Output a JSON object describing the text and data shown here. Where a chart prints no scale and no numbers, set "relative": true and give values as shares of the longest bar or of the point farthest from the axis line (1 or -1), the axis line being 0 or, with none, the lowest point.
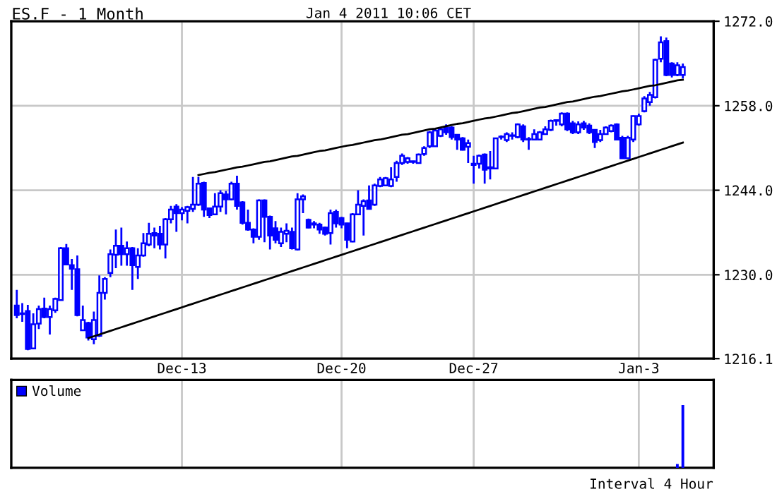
{
  "chart_data": [
    {
      "type": "candlestick",
      "title": "ES.F - 1 Month",
      "subtitle": "Jan 4 2011 10:06 CET",
      "categories": [
        null,
        null,
        null,
        null,
        null,
        null,
        null,
        null,
        null,
        null,
        null,
        null,
        null,
        null,
        null,
        null,
        null,
        null,
        null,
        null,
        null,
        null,
        null,
        null,
        null,
        null,
        null,
        null,
        null,
        null,
        "Dec-13",
        null,
        null,
        null,
        null,
        null,
        null,
        null,
        null,
        null,
        null,
        null,
        null,
        null,
        null,
        null,
        null,
        null,
        null,
        null,
        null,
        null,
        null,
        null,
        null,
        null,
        null,
        null,
        null,
        "Dec-20",
        null,
        null,
        null,
        null,
        null,
        null,
        null,
        null,
        null,
        null,
        null,
        null,
        null,
        null,
        null,
        null,
        null,
        null,
        null,
        null,
        null,
        null,
        null,
        "Dec-27",
        null,
        null,
        null,
        null,
        null,
        null,
        null,
        null,
        null,
        null,
        null,
        null,
        null,
        null,
        null,
        null,
        null,
        null,
        null,
        null,
        null,
        null,
        null,
        null,
        null,
        null,
        null,
        null,
        null,
        "Jan-3",
        null,
        null,
        null,
        null,
        null,
        null,
        null,
        null
      ],
      "ylim": [
        1216.1,
        1272.0
      ],
      "yticks": [
        {
          "value": 1216.1,
          "label": "1216.1"
        },
        {
          "value": 1230,
          "label": "1230.0"
        },
        {
          "value": 1244,
          "label": "1244.0"
        },
        {
          "value": 1258,
          "label": "1258.0"
        },
        {
          "value": 1272,
          "label": "1272.0"
        }
      ],
      "grid": true,
      "series": [
        {
          "type": "candlestick",
          "color": "#0000ff",
          "ohlc": [
            [
              1224.9,
              1227.5,
              1222.8,
              1223.3
            ],
            [
              1223.6,
              1225.3,
              1222.2,
              1223.5
            ],
            [
              1224.0,
              1225.0,
              1217.5,
              1217.7
            ],
            [
              1217.8,
              1223.6,
              1217.7,
              1221.8
            ],
            [
              1221.9,
              1224.9,
              1221.0,
              1224.3
            ],
            [
              1224.4,
              1226.2,
              1222.8,
              1223.0
            ],
            [
              1223.0,
              1224.9,
              1220.1,
              1224.3
            ],
            [
              1224.1,
              1226.2,
              1223.7,
              1226.0
            ],
            [
              1225.8,
              1234.6,
              1225.7,
              1234.4
            ],
            [
              1234.4,
              1235.1,
              1231.6,
              1231.7
            ],
            [
              1231.6,
              1232.6,
              1227.5,
              1231.0
            ],
            [
              1230.9,
              1233.2,
              1223.1,
              1223.3
            ],
            [
              1220.8,
              1224.9,
              1220.8,
              1222.5
            ],
            [
              1222.0,
              1222.2,
              1219.1,
              1219.6
            ],
            [
              1219.3,
              1223.9,
              1218.5,
              1222.5
            ],
            [
              1219.9,
              1229.9,
              1219.7,
              1227.0
            ],
            [
              1227.0,
              1229.6,
              1225.9,
              1229.3
            ],
            [
              1230.3,
              1234.2,
              1229.6,
              1233.4
            ],
            [
              1233.3,
              1237.5,
              1231.1,
              1234.8
            ],
            [
              1234.8,
              1237.8,
              1231.5,
              1233.4
            ],
            [
              1233.4,
              1235.5,
              1231.5,
              1234.4
            ],
            [
              1234.4,
              1234.6,
              1227.5,
              1231.6
            ],
            [
              1231.3,
              1234.4,
              1229.3,
              1233.2
            ],
            [
              1233.2,
              1236.9,
              1233.0,
              1235.2
            ],
            [
              1235.0,
              1238.6,
              1234.7,
              1236.8
            ],
            [
              1236.9,
              1237.8,
              1234.4,
              1236.5
            ],
            [
              1236.8,
              1238.1,
              1234.2,
              1235.0
            ],
            [
              1235.0,
              1239.4,
              1232.7,
              1239.2
            ],
            [
              1239.2,
              1241.4,
              1238.5,
              1240.8
            ],
            [
              1241.3,
              1241.7,
              1237.1,
              1240.2
            ],
            [
              1240.2,
              1241.2,
              1239.0,
              1240.8
            ],
            [
              1240.6,
              1241.4,
              1238.5,
              1241.2
            ],
            [
              1240.9,
              1246.2,
              1240.4,
              1241.6
            ],
            [
              1241.6,
              1246.2,
              1241.4,
              1245.1
            ],
            [
              1245.2,
              1245.4,
              1239.6,
              1240.8
            ],
            [
              1241.0,
              1241.1,
              1239.4,
              1239.9
            ],
            [
              1240.0,
              1243.5,
              1239.9,
              1241.3
            ],
            [
              1241.3,
              1244.0,
              1240.4,
              1243.5
            ],
            [
              1243.3,
              1243.9,
              1240.0,
              1242.5
            ],
            [
              1242.5,
              1245.4,
              1242.3,
              1245.1
            ],
            [
              1245.1,
              1246.4,
              1240.8,
              1241.4
            ],
            [
              1242.0,
              1242.2,
              1238.3,
              1238.6
            ],
            [
              1238.6,
              1240.8,
              1237.3,
              1237.5
            ],
            [
              1237.5,
              1237.7,
              1235.2,
              1236.3
            ],
            [
              1236.3,
              1242.5,
              1235.8,
              1242.3
            ],
            [
              1242.3,
              1242.5,
              1235.4,
              1239.6
            ],
            [
              1239.6,
              1239.8,
              1234.2,
              1236.5
            ],
            [
              1237.7,
              1238.9,
              1235.2,
              1235.8
            ],
            [
              1235.2,
              1237.8,
              1234.6,
              1237.1
            ],
            [
              1236.8,
              1238.5,
              1235.4,
              1237.3
            ],
            [
              1237.1,
              1237.8,
              1234.2,
              1234.4
            ],
            [
              1234.2,
              1243.5,
              1234.0,
              1242.5
            ],
            [
              1242.5,
              1243.3,
              1240.2,
              1243.0
            ],
            [
              1239.1,
              1239.3,
              1237.7,
              1237.8
            ],
            [
              1238.5,
              1238.9,
              1237.7,
              1238.3
            ],
            [
              1238.3,
              1238.6,
              1236.8,
              1237.5
            ],
            [
              1237.8,
              1238.0,
              1236.5,
              1236.8
            ],
            [
              1236.9,
              1240.8,
              1235.0,
              1240.2
            ],
            [
              1240.4,
              1240.8,
              1237.8,
              1238.5
            ],
            [
              1239.4,
              1239.6,
              1237.7,
              1238.3
            ],
            [
              1238.5,
              1238.6,
              1234.4,
              1235.8
            ],
            [
              1235.5,
              1240.2,
              1235.4,
              1240.0
            ],
            [
              1240.0,
              1244.0,
              1240.0,
              1241.6
            ],
            [
              1241.4,
              1242.5,
              1236.5,
              1242.2
            ],
            [
              1242.3,
              1244.8,
              1240.8,
              1240.9
            ],
            [
              1241.6,
              1245.1,
              1241.4,
              1244.8
            ],
            [
              1244.7,
              1246.2,
              1244.5,
              1245.8
            ],
            [
              1244.8,
              1246.2,
              1244.7,
              1246.0
            ],
            [
              1244.7,
              1247.8,
              1244.5,
              1245.8
            ],
            [
              1246.2,
              1248.9,
              1245.4,
              1248.5
            ],
            [
              1248.5,
              1250.1,
              1248.2,
              1249.7
            ],
            [
              1248.7,
              1249.5,
              1248.4,
              1249.3
            ],
            [
              1248.8,
              1248.9,
              1248.4,
              1248.7
            ],
            [
              1248.5,
              1250.1,
              1248.4,
              1249.9
            ],
            [
              1250.0,
              1251.3,
              1249.7,
              1251.0
            ],
            [
              1251.3,
              1253.8,
              1251.0,
              1253.6
            ],
            [
              1251.3,
              1254.2,
              1251.2,
              1253.9
            ],
            [
              1253.0,
              1254.4,
              1252.8,
              1254.1
            ],
            [
              1254.4,
              1254.9,
              1253.2,
              1253.6
            ],
            [
              1254.4,
              1254.6,
              1252.4,
              1252.8
            ],
            [
              1253.2,
              1253.3,
              1250.7,
              1252.4
            ],
            [
              1252.6,
              1252.8,
              1250.6,
              1250.7
            ],
            [
              1251.2,
              1252.4,
              1248.5,
              1251.8
            ],
            [
              1248.4,
              1249.7,
              1245.1,
              1248.2
            ],
            [
              1248.4,
              1249.9,
              1247.6,
              1249.7
            ],
            [
              1249.9,
              1250.1,
              1245.1,
              1247.4
            ],
            [
              1247.8,
              1250.5,
              1245.8,
              1247.6
            ],
            [
              1247.6,
              1252.7,
              1247.5,
              1252.6
            ],
            [
              1252.8,
              1253.1,
              1252.4,
              1252.9
            ],
            [
              1252.3,
              1253.6,
              1252.0,
              1253.3
            ],
            [
              1253.0,
              1253.6,
              1252.4,
              1253.1
            ],
            [
              1252.8,
              1255.1,
              1252.6,
              1254.9
            ],
            [
              1254.6,
              1254.9,
              1252.0,
              1252.4
            ],
            [
              1252.5,
              1252.8,
              1250.7,
              1252.4
            ],
            [
              1252.4,
              1254.1,
              1252.3,
              1253.3
            ],
            [
              1252.4,
              1253.8,
              1252.3,
              1253.6
            ],
            [
              1253.3,
              1254.6,
              1253.2,
              1254.1
            ],
            [
              1254.0,
              1255.7,
              1253.8,
              1255.5
            ],
            [
              1255.6,
              1255.7,
              1254.7,
              1255.5
            ],
            [
              1254.9,
              1256.9,
              1254.6,
              1256.7
            ],
            [
              1256.7,
              1256.9,
              1253.8,
              1254.1
            ],
            [
              1255.1,
              1255.5,
              1253.3,
              1253.6
            ],
            [
              1253.6,
              1255.4,
              1253.3,
              1254.9
            ],
            [
              1255.1,
              1255.5,
              1254.0,
              1254.4
            ],
            [
              1254.7,
              1255.1,
              1253.3,
              1253.6
            ],
            [
              1254.0,
              1254.1,
              1251.0,
              1252.0
            ],
            [
              1252.3,
              1254.0,
              1252.0,
              1253.3
            ],
            [
              1253.3,
              1254.6,
              1253.2,
              1254.4
            ],
            [
              1253.8,
              1254.9,
              1253.6,
              1254.7
            ],
            [
              1254.9,
              1255.1,
              1252.3,
              1252.4
            ],
            [
              1252.7,
              1253.0,
              1249.2,
              1249.3
            ],
            [
              1249.3,
              1253.0,
              1249.2,
              1252.7
            ],
            [
              1252.4,
              1256.4,
              1252.0,
              1256.3
            ],
            [
              1254.9,
              1256.7,
              1254.7,
              1256.3
            ],
            [
              1257.1,
              1259.6,
              1256.9,
              1259.2
            ],
            [
              1258.6,
              1260.3,
              1258.0,
              1259.8
            ],
            [
              1259.4,
              1265.8,
              1259.2,
              1265.6
            ],
            [
              1265.8,
              1269.5,
              1265.2,
              1268.5
            ],
            [
              1268.7,
              1269.3,
              1262.9,
              1263.1
            ],
            [
              1265.0,
              1265.2,
              1262.7,
              1263.1
            ],
            [
              1263.1,
              1265.2,
              1262.9,
              1264.7
            ],
            [
              1263.1,
              1265.0,
              1262.5,
              1264.4
            ]
          ]
        },
        {
          "type": "line",
          "color": "#000000",
          "values": [
            null,
            null,
            null,
            null,
            null,
            null,
            null,
            null,
            null,
            null,
            null,
            null,
            null,
            null,
            null,
            null,
            null,
            null,
            null,
            null,
            null,
            null,
            null,
            null,
            null,
            null,
            null,
            null,
            null,
            null,
            null,
            null,
            null,
            1246.5,
            1246.7,
            1246.9,
            1247.0,
            1247.2,
            1247.4,
            1247.6,
            1247.8,
            1247.9,
            1248.1,
            1248.3,
            1248.5,
            1248.7,
            1248.8,
            1249.0,
            1249.2,
            1249.4,
            1249.6,
            1249.7,
            1249.9,
            1250.1,
            1250.3,
            1250.5,
            1250.6,
            1250.8,
            1251.0,
            1251.2,
            1251.4,
            1251.5,
            1251.7,
            1251.9,
            1252.1,
            1252.3,
            1252.4,
            1252.6,
            1252.8,
            1253.0,
            1253.2,
            1253.3,
            1253.5,
            1253.7,
            1253.9,
            1254.1,
            1254.2,
            1254.4,
            1254.6,
            1254.8,
            1255.0,
            1255.1,
            1255.3,
            1255.5,
            1255.7,
            1255.9,
            1256.0,
            1256.2,
            1256.4,
            1256.6,
            1256.8,
            1256.9,
            1257.1,
            1257.3,
            1257.5,
            1257.7,
            1257.8,
            1258.0,
            1258.2,
            1258.4,
            1258.6,
            1258.7,
            1258.9,
            1259.1,
            1259.3,
            1259.5,
            1259.6,
            1259.8,
            1260.0,
            1260.2,
            1260.4,
            1260.5,
            1260.7,
            1260.9,
            1261.1,
            1261.3,
            1261.4,
            1261.6,
            1261.8,
            1262.0,
            1262.2,
            1262.3
          ]
        },
        {
          "type": "line",
          "color": "#000000",
          "values": [
            null,
            null,
            null,
            null,
            null,
            null,
            null,
            null,
            null,
            null,
            null,
            null,
            null,
            1219.5,
            1219.8,
            1220.1,
            1220.4,
            1220.7,
            1221.0,
            1221.3,
            1221.6,
            1221.9,
            1222.2,
            1222.5,
            1222.8,
            1223.1,
            1223.4,
            1223.7,
            1224.0,
            1224.3,
            1224.6,
            1224.9,
            1225.2,
            1225.5,
            1225.8,
            1226.1,
            1226.4,
            1226.7,
            1227.0,
            1227.3,
            1227.6,
            1227.9,
            1228.2,
            1228.5,
            1228.8,
            1229.1,
            1229.4,
            1229.7,
            1230.0,
            1230.3,
            1230.6,
            1230.9,
            1231.2,
            1231.5,
            1231.8,
            1232.1,
            1232.4,
            1232.7,
            1233.0,
            1233.3,
            1233.6,
            1233.9,
            1234.2,
            1234.5,
            1234.8,
            1235.1,
            1235.4,
            1235.7,
            1236.0,
            1236.3,
            1236.6,
            1236.9,
            1237.2,
            1237.5,
            1237.8,
            1238.1,
            1238.4,
            1238.7,
            1239.0,
            1239.3,
            1239.6,
            1239.9,
            1240.2,
            1240.5,
            1240.8,
            1241.1,
            1241.4,
            1241.7,
            1242.0,
            1242.3,
            1242.6,
            1242.9,
            1243.2,
            1243.5,
            1243.8,
            1244.1,
            1244.4,
            1244.7,
            1245.0,
            1245.3,
            1245.6,
            1245.9,
            1246.2,
            1246.5,
            1246.8,
            1247.1,
            1247.4,
            1247.7,
            1248.0,
            1248.3,
            1248.6,
            1248.9,
            1249.2,
            1249.5,
            1249.8,
            1250.1,
            1250.4,
            1250.7,
            1251.0,
            1251.3,
            1251.6,
            1251.9
          ]
        }
      ]
    },
    {
      "type": "bar",
      "relative": true,
      "categories": [
        null,
        null,
        null,
        null,
        null,
        null,
        null,
        null,
        null,
        null,
        null,
        null,
        null,
        null,
        null,
        null,
        null,
        null,
        null,
        null,
        null,
        null,
        null,
        null,
        null,
        null,
        null,
        null,
        null,
        null,
        null,
        null,
        null,
        null,
        null,
        null,
        null,
        null,
        null,
        null,
        null,
        null,
        null,
        null,
        null,
        null,
        null,
        null,
        null,
        null,
        null,
        null,
        null,
        null,
        null,
        null,
        null,
        null,
        null,
        null,
        null,
        null,
        null,
        null,
        null,
        null,
        null,
        null,
        null,
        null,
        null,
        null,
        null,
        null,
        null,
        null,
        null,
        null,
        null,
        null,
        null,
        null,
        null,
        null,
        null,
        null,
        null,
        null,
        null,
        null,
        null,
        null,
        null,
        null,
        null,
        null,
        null,
        null,
        null,
        null,
        null,
        null,
        null,
        null,
        null,
        null,
        null,
        null,
        null,
        null,
        null,
        null,
        null,
        null,
        null,
        null,
        null,
        null,
        null,
        null,
        null,
        null
      ],
      "grid": "x",
      "legend": "top left",
      "annotations": [
        "Interval 4 Hour"
      ],
      "series": [
        {
          "name": "Volume",
          "color": "#0000ff",
          "values": [
            null,
            null,
            null,
            null,
            null,
            null,
            null,
            null,
            null,
            null,
            null,
            null,
            null,
            null,
            null,
            null,
            null,
            null,
            null,
            null,
            null,
            null,
            null,
            null,
            null,
            null,
            null,
            null,
            null,
            null,
            null,
            null,
            null,
            null,
            null,
            null,
            null,
            null,
            null,
            null,
            null,
            null,
            null,
            null,
            null,
            null,
            null,
            null,
            null,
            null,
            null,
            null,
            null,
            null,
            null,
            null,
            null,
            null,
            null,
            null,
            null,
            null,
            null,
            null,
            null,
            null,
            null,
            null,
            null,
            null,
            null,
            null,
            null,
            null,
            null,
            null,
            null,
            null,
            null,
            null,
            null,
            null,
            null,
            null,
            null,
            null,
            null,
            null,
            null,
            null,
            null,
            null,
            null,
            null,
            null,
            null,
            null,
            null,
            null,
            null,
            null,
            null,
            null,
            null,
            null,
            null,
            null,
            null,
            null,
            null,
            null,
            null,
            null,
            null,
            null,
            null,
            null,
            null,
            null,
            null,
            0.06,
            1
          ]
        }
      ]
    }
  ]
}
